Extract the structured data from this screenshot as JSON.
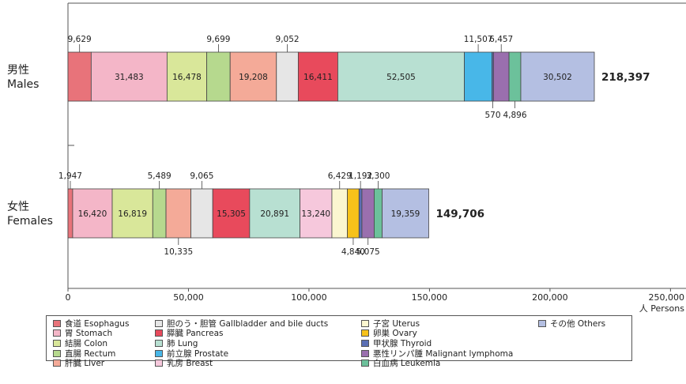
{
  "chart_data": {
    "type": "bar",
    "orientation": "horizontal",
    "stacked": true,
    "categories": [
      {
        "label_ja": "男性",
        "label_en": "Males",
        "total": "218,397"
      },
      {
        "label_ja": "女性",
        "label_en": "Females",
        "total": "149,706"
      }
    ],
    "xlim": [
      0,
      250000
    ],
    "x_ticks": [
      {
        "value": 0,
        "label": "0"
      },
      {
        "value": 50000,
        "label": "50,000"
      },
      {
        "value": 100000,
        "label": "100,000"
      },
      {
        "value": 150000,
        "label": "150,000"
      },
      {
        "value": 200000,
        "label": "200,000"
      },
      {
        "value": 250000,
        "label": "250,000"
      }
    ],
    "x_unit_label": "人 Persons",
    "series": [
      {
        "key": "esophagus",
        "name": "食道 Esophagus",
        "color": "#e8737a",
        "values": [
          9629,
          1947
        ],
        "labels": [
          "9,629",
          "1,947"
        ],
        "label_pos": [
          "above",
          "above"
        ]
      },
      {
        "key": "stomach",
        "name": "胃 Stomach",
        "color": "#f4b6c8",
        "values": [
          31483,
          16420
        ],
        "labels": [
          "31,483",
          "16,420"
        ],
        "label_pos": [
          "inside",
          "inside"
        ]
      },
      {
        "key": "colon",
        "name": "結腸 Colon",
        "color": "#d9e79a",
        "values": [
          16478,
          16819
        ],
        "labels": [
          "16,478",
          "16,819"
        ],
        "label_pos": [
          "inside",
          "inside"
        ]
      },
      {
        "key": "rectum",
        "name": "直腸 Rectum",
        "color": "#b6d98e",
        "values": [
          9699,
          5489
        ],
        "labels": [
          "9,699",
          "5,489"
        ],
        "label_pos": [
          "above",
          "above"
        ]
      },
      {
        "key": "liver",
        "name": "肝臓 Liver",
        "color": "#f4aa98",
        "values": [
          19208,
          10335
        ],
        "labels": [
          "19,208",
          "10,335"
        ],
        "label_pos": [
          "inside",
          "below"
        ]
      },
      {
        "key": "gallbladder",
        "name": "胆のう・胆管 Gallbladder and bile ducts",
        "color": "#e6e6e6",
        "values": [
          9052,
          9065
        ],
        "labels": [
          "9,052",
          "9,065"
        ],
        "label_pos": [
          "above",
          "above"
        ]
      },
      {
        "key": "pancreas",
        "name": "膵臓 Pancreas",
        "color": "#e84a5c",
        "values": [
          16411,
          15305
        ],
        "labels": [
          "16,411",
          "15,305"
        ],
        "label_pos": [
          "inside",
          "inside"
        ]
      },
      {
        "key": "lung",
        "name": "肺 Lung",
        "color": "#b8e0d2",
        "values": [
          52505,
          20891
        ],
        "labels": [
          "52,505",
          "20,891"
        ],
        "label_pos": [
          "inside",
          "inside"
        ]
      },
      {
        "key": "breast",
        "name": "乳房 Breast",
        "color": "#f6c8dc",
        "values": [
          0,
          13240
        ],
        "labels": [
          "",
          "13,240"
        ],
        "label_pos": [
          "none",
          "inside"
        ]
      },
      {
        "key": "uterus",
        "name": "子宮 Uterus",
        "color": "#fbf6d0",
        "values": [
          0,
          6429
        ],
        "labels": [
          "",
          "6,429"
        ],
        "label_pos": [
          "none",
          "above"
        ]
      },
      {
        "key": "ovary",
        "name": "卵巣 Ovary",
        "color": "#f7c21a",
        "values": [
          0,
          4840
        ],
        "labels": [
          "",
          "4,840"
        ],
        "label_pos": [
          "none",
          "below"
        ]
      },
      {
        "key": "prostate",
        "name": "前立腺 Prostate",
        "color": "#48b7e8",
        "values": [
          11507,
          0
        ],
        "labels": [
          "11,507",
          ""
        ],
        "label_pos": [
          "above",
          "none"
        ]
      },
      {
        "key": "thyroid",
        "name": "甲状腺 Thyroid",
        "color": "#5b6fb4",
        "values": [
          570,
          1192
        ],
        "labels": [
          "570",
          "1,192"
        ],
        "label_pos": [
          "below",
          "above"
        ]
      },
      {
        "key": "lymphoma",
        "name": "悪性リンパ腫 Malignant lymphoma",
        "color": "#9a6fae",
        "values": [
          6457,
          5075
        ],
        "labels": [
          "6,457",
          "5,075"
        ],
        "label_pos": [
          "above",
          "below"
        ]
      },
      {
        "key": "leukemia",
        "name": "白血病 Leukemia",
        "color": "#6cc19b",
        "values": [
          4896,
          3300
        ],
        "labels": [
          "4,896",
          "3,300"
        ],
        "label_pos": [
          "below",
          "above"
        ]
      },
      {
        "key": "others",
        "name": "その他 Others",
        "color": "#b4bfe2",
        "values": [
          30502,
          19359
        ],
        "labels": [
          "30,502",
          "19,359"
        ],
        "label_pos": [
          "inside",
          "inside"
        ]
      }
    ],
    "legend_columns": [
      [
        "esophagus",
        "stomach",
        "colon",
        "rectum",
        "liver"
      ],
      [
        "gallbladder",
        "pancreas",
        "lung",
        "prostate",
        "breast"
      ],
      [
        "uterus",
        "ovary",
        "thyroid",
        "lymphoma",
        "leukemia"
      ],
      [
        "others"
      ]
    ],
    "legend_placement": "bottom",
    "grid": false
  }
}
